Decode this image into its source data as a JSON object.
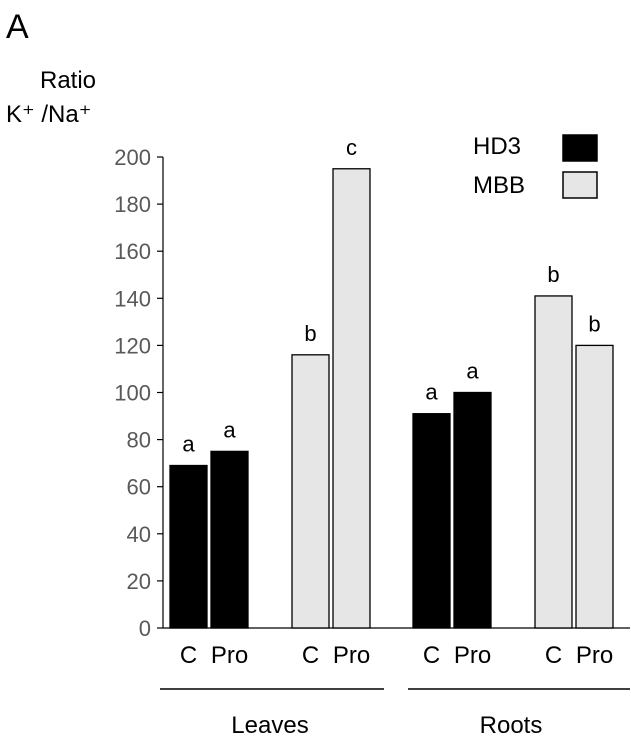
{
  "panel_label": "A",
  "legend": [
    {
      "label": "HD3",
      "color": "#000000"
    },
    {
      "label": "MBB",
      "color": "#e6e6e6"
    }
  ],
  "chart_data": {
    "type": "bar",
    "title": "",
    "ylabel_line1": "Ratio",
    "ylabel_line2": "K⁺ /Na⁺",
    "ylim": [
      0,
      200
    ],
    "yticks": [
      0,
      20,
      40,
      60,
      80,
      100,
      120,
      140,
      160,
      180,
      200
    ],
    "grid": false,
    "legend_position": "top-right",
    "groups": [
      "Leaves",
      "Roots"
    ],
    "bars": [
      {
        "group": "Leaves",
        "series": "HD3",
        "category": "C",
        "value": 69,
        "letter": "a"
      },
      {
        "group": "Leaves",
        "series": "HD3",
        "category": "Pro",
        "value": 75,
        "letter": "a"
      },
      {
        "group": "Leaves",
        "series": "MBB",
        "category": "C",
        "value": 116,
        "letter": "b"
      },
      {
        "group": "Leaves",
        "series": "MBB",
        "category": "Pro",
        "value": 195,
        "letter": "c"
      },
      {
        "group": "Roots",
        "series": "HD3",
        "category": "C",
        "value": 91,
        "letter": "a"
      },
      {
        "group": "Roots",
        "series": "HD3",
        "category": "Pro",
        "value": 100,
        "letter": "a"
      },
      {
        "group": "Roots",
        "series": "MBB",
        "category": "C",
        "value": 141,
        "letter": "b"
      },
      {
        "group": "Roots",
        "series": "MBB",
        "category": "Pro",
        "value": 120,
        "letter": "b"
      }
    ]
  }
}
